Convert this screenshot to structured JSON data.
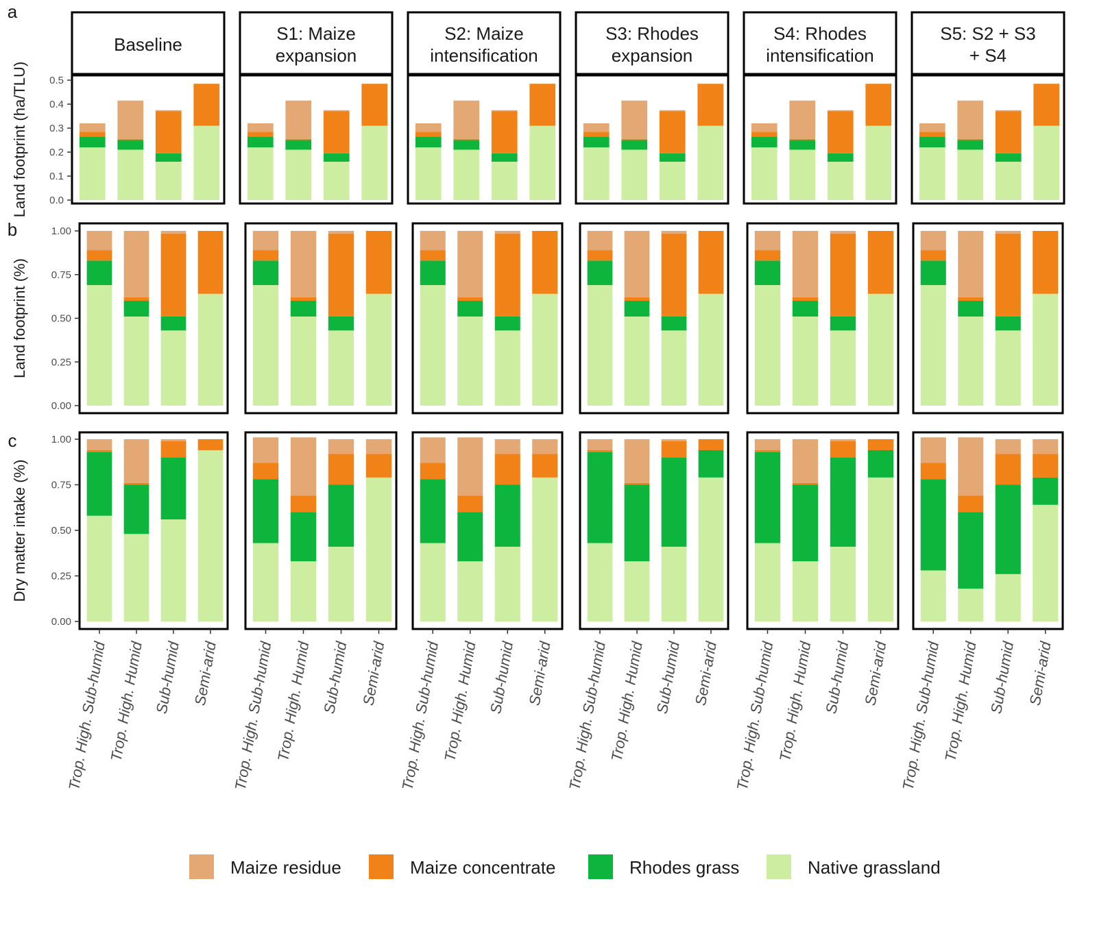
{
  "colors": {
    "Maize residue": "#e3a874",
    "Maize concentrate": "#f08217",
    "Rhodes grass": "#0db53d",
    "Native grassland": "#cdeda0"
  },
  "chart_data": [
    {
      "type": "bar",
      "stacked": true,
      "panel_letter": "a",
      "ylabel": "Land footprint (ha/TLU)",
      "ylim": [
        0,
        0.5
      ],
      "yticks": [
        "0.0",
        "0.1",
        "0.2",
        "0.3",
        "0.4",
        "0.5"
      ],
      "facets": [
        "Baseline",
        "S1: Maize expansion",
        "S2: Maize intensification",
        "S3: Rhodes expansion",
        "S4: Rhodes intensification",
        "S5: S2 + S3 + S4"
      ],
      "categories": [
        "Trop. High. Sub-humid",
        "Trop. High. Humid",
        "Sub-humid",
        "Semi-arid"
      ],
      "series": [
        {
          "name": "Native grassland",
          "values_by_facet": [
            [
              0.22,
              0.21,
              0.16,
              0.31
            ],
            [
              0.22,
              0.21,
              0.16,
              0.31
            ],
            [
              0.22,
              0.21,
              0.16,
              0.31
            ],
            [
              0.22,
              0.21,
              0.16,
              0.31
            ],
            [
              0.22,
              0.21,
              0.16,
              0.31
            ],
            [
              0.22,
              0.21,
              0.16,
              0.31
            ]
          ]
        },
        {
          "name": "Rhodes grass",
          "values_by_facet": [
            [
              0.045,
              0.04,
              0.035,
              0
            ],
            [
              0.045,
              0.04,
              0.035,
              0
            ],
            [
              0.045,
              0.04,
              0.035,
              0
            ],
            [
              0.045,
              0.04,
              0.035,
              0
            ],
            [
              0.045,
              0.04,
              0.035,
              0
            ],
            [
              0.045,
              0.04,
              0.035,
              0
            ]
          ]
        },
        {
          "name": "Maize concentrate",
          "values_by_facet": [
            [
              0.02,
              0.005,
              0.175,
              0.175
            ],
            [
              0.02,
              0.005,
              0.175,
              0.175
            ],
            [
              0.02,
              0.005,
              0.175,
              0.175
            ],
            [
              0.02,
              0.005,
              0.175,
              0.175
            ],
            [
              0.02,
              0.005,
              0.175,
              0.175
            ],
            [
              0.02,
              0.005,
              0.175,
              0.175
            ]
          ]
        },
        {
          "name": "Maize residue",
          "values_by_facet": [
            [
              0.035,
              0.16,
              0.005,
              0
            ],
            [
              0.035,
              0.16,
              0.005,
              0
            ],
            [
              0.035,
              0.16,
              0.005,
              0
            ],
            [
              0.035,
              0.16,
              0.005,
              0
            ],
            [
              0.035,
              0.16,
              0.005,
              0
            ],
            [
              0.035,
              0.16,
              0.005,
              0
            ]
          ]
        }
      ]
    },
    {
      "type": "bar",
      "stacked": true,
      "panel_letter": "b",
      "ylabel": "Land footprint (%)",
      "ylim": [
        0,
        1
      ],
      "yticks": [
        "0.00",
        "0.25",
        "0.50",
        "0.75",
        "1.00"
      ],
      "categories": [
        "Trop. High. Sub-humid",
        "Trop. High. Humid",
        "Sub-humid",
        "Semi-arid"
      ],
      "series": [
        {
          "name": "Native grassland",
          "values_by_facet": [
            [
              0.69,
              0.51,
              0.43,
              0.64
            ],
            [
              0.69,
              0.51,
              0.43,
              0.64
            ],
            [
              0.69,
              0.51,
              0.43,
              0.64
            ],
            [
              0.69,
              0.51,
              0.43,
              0.64
            ],
            [
              0.69,
              0.51,
              0.43,
              0.64
            ],
            [
              0.69,
              0.51,
              0.43,
              0.64
            ]
          ]
        },
        {
          "name": "Rhodes grass",
          "values_by_facet": [
            [
              0.14,
              0.09,
              0.08,
              0
            ],
            [
              0.14,
              0.09,
              0.08,
              0
            ],
            [
              0.14,
              0.09,
              0.08,
              0
            ],
            [
              0.14,
              0.09,
              0.08,
              0
            ],
            [
              0.14,
              0.09,
              0.08,
              0
            ],
            [
              0.14,
              0.09,
              0.08,
              0
            ]
          ]
        },
        {
          "name": "Maize concentrate",
          "values_by_facet": [
            [
              0.06,
              0.02,
              0.475,
              0.36
            ],
            [
              0.06,
              0.02,
              0.475,
              0.36
            ],
            [
              0.06,
              0.02,
              0.475,
              0.36
            ],
            [
              0.06,
              0.02,
              0.475,
              0.36
            ],
            [
              0.06,
              0.02,
              0.475,
              0.36
            ],
            [
              0.06,
              0.02,
              0.475,
              0.36
            ]
          ]
        },
        {
          "name": "Maize residue",
          "values_by_facet": [
            [
              0.11,
              0.38,
              0.015,
              0
            ],
            [
              0.11,
              0.38,
              0.015,
              0
            ],
            [
              0.11,
              0.38,
              0.015,
              0
            ],
            [
              0.11,
              0.38,
              0.015,
              0
            ],
            [
              0.11,
              0.38,
              0.015,
              0
            ],
            [
              0.11,
              0.38,
              0.015,
              0
            ]
          ]
        }
      ]
    },
    {
      "type": "bar",
      "stacked": true,
      "panel_letter": "c",
      "ylabel": "Dry matter intake (%)",
      "ylim": [
        0,
        1
      ],
      "yticks": [
        "0.00",
        "0.25",
        "0.50",
        "0.75",
        "1.00"
      ],
      "categories": [
        "Trop. High. Sub-humid",
        "Trop. High. Humid",
        "Sub-humid",
        "Semi-arid"
      ],
      "series": [
        {
          "name": "Native grassland",
          "values_by_facet": [
            [
              0.58,
              0.48,
              0.56,
              0.94
            ],
            [
              0.43,
              0.33,
              0.41,
              0.79
            ],
            [
              0.43,
              0.33,
              0.41,
              0.79
            ],
            [
              0.43,
              0.33,
              0.41,
              0.79
            ],
            [
              0.43,
              0.33,
              0.41,
              0.79
            ],
            [
              0.28,
              0.18,
              0.26,
              0.64
            ]
          ]
        },
        {
          "name": "Rhodes grass",
          "values_by_facet": [
            [
              0.35,
              0.27,
              0.34,
              0
            ],
            [
              0.35,
              0.27,
              0.34,
              0
            ],
            [
              0.35,
              0.27,
              0.34,
              0
            ],
            [
              0.5,
              0.42,
              0.49,
              0.15
            ],
            [
              0.5,
              0.42,
              0.49,
              0.15
            ],
            [
              0.5,
              0.42,
              0.49,
              0.15
            ]
          ]
        },
        {
          "name": "Maize concentrate",
          "values_by_facet": [
            [
              0.01,
              0.01,
              0.09,
              0.06
            ],
            [
              0.09,
              0.09,
              0.17,
              0.13
            ],
            [
              0.09,
              0.09,
              0.17,
              0.13
            ],
            [
              0.01,
              0.01,
              0.09,
              0.06
            ],
            [
              0.01,
              0.01,
              0.09,
              0.06
            ],
            [
              0.09,
              0.09,
              0.17,
              0.13
            ]
          ]
        },
        {
          "name": "Maize residue",
          "values_by_facet": [
            [
              0.06,
              0.24,
              0.01,
              0
            ],
            [
              0.14,
              0.32,
              0.08,
              0.08
            ],
            [
              0.14,
              0.32,
              0.08,
              0.08
            ],
            [
              0.06,
              0.24,
              0.01,
              0
            ],
            [
              0.06,
              0.24,
              0.01,
              0
            ],
            [
              0.14,
              0.32,
              0.08,
              0.08
            ]
          ]
        }
      ]
    }
  ],
  "legend": {
    "position": "bottom",
    "items": [
      "Maize residue",
      "Maize concentrate",
      "Rhodes grass",
      "Native grassland"
    ]
  }
}
